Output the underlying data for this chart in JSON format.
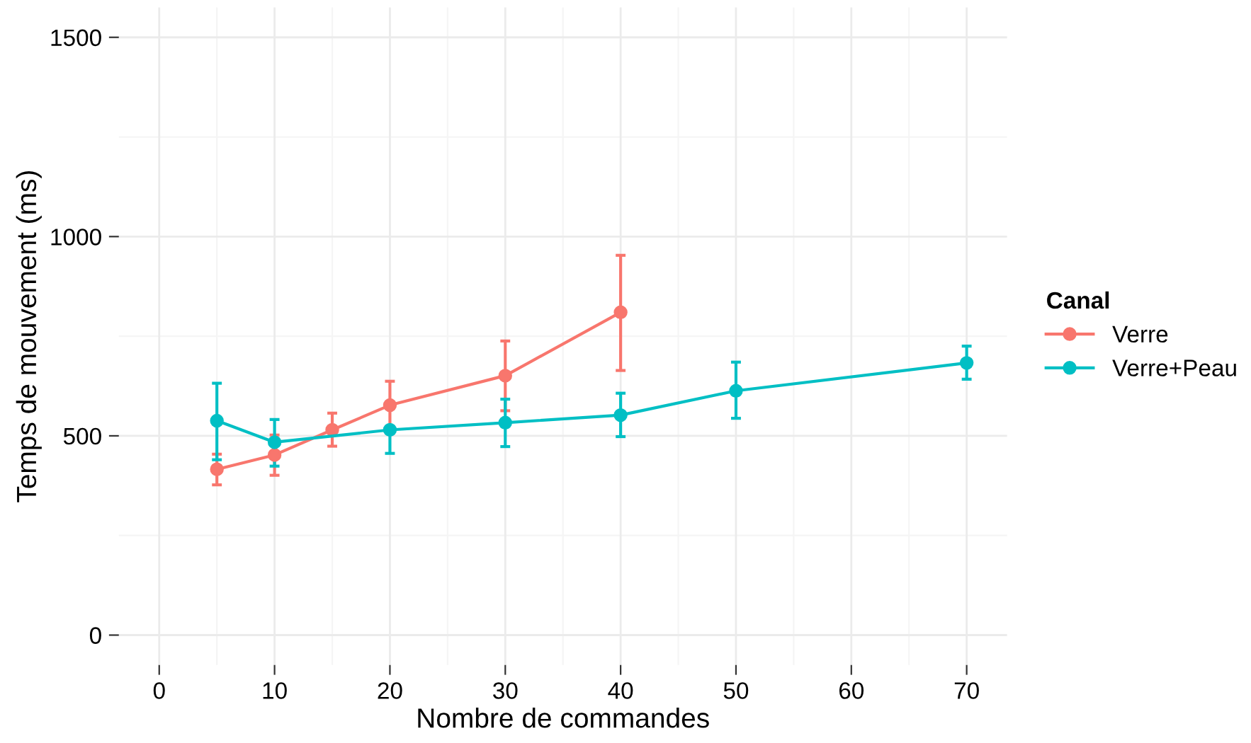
{
  "chart_data": {
    "type": "line",
    "xlabel": "Nombre de commandes",
    "ylabel": "Temps de mouvement (ms)",
    "legend_title": "Canal",
    "legend": "right",
    "grid": true,
    "marker": "circle",
    "line_style": "solid",
    "xlim": [
      -3.5,
      73.5
    ],
    "xticks": [
      0,
      10,
      20,
      30,
      40,
      50,
      60,
      70
    ],
    "ylim": [
      -75,
      1575
    ],
    "yticks": [
      0,
      500,
      1000,
      1500
    ],
    "series": [
      {
        "name": "Verre",
        "color": "#f8766d",
        "x": [
          5,
          10,
          15,
          20,
          30,
          40
        ],
        "values": [
          416,
          452,
          515,
          577,
          651,
          810
        ],
        "errors": [
          [
            377,
            454
          ],
          [
            401,
            502
          ],
          [
            474,
            557
          ],
          [
            517,
            637
          ],
          [
            563,
            738
          ],
          [
            664,
            953
          ]
        ]
      },
      {
        "name": "Verre+Peau",
        "color": "#00bfc4",
        "x": [
          5,
          10,
          20,
          30,
          40,
          50,
          70
        ],
        "values": [
          538,
          484,
          515,
          533,
          552,
          613,
          683
        ],
        "errors": [
          [
            440,
            632
          ],
          [
            424,
            541
          ],
          [
            456,
            515
          ],
          [
            473,
            592
          ],
          [
            498,
            607
          ],
          [
            544,
            685
          ],
          [
            642,
            725
          ]
        ]
      }
    ]
  }
}
